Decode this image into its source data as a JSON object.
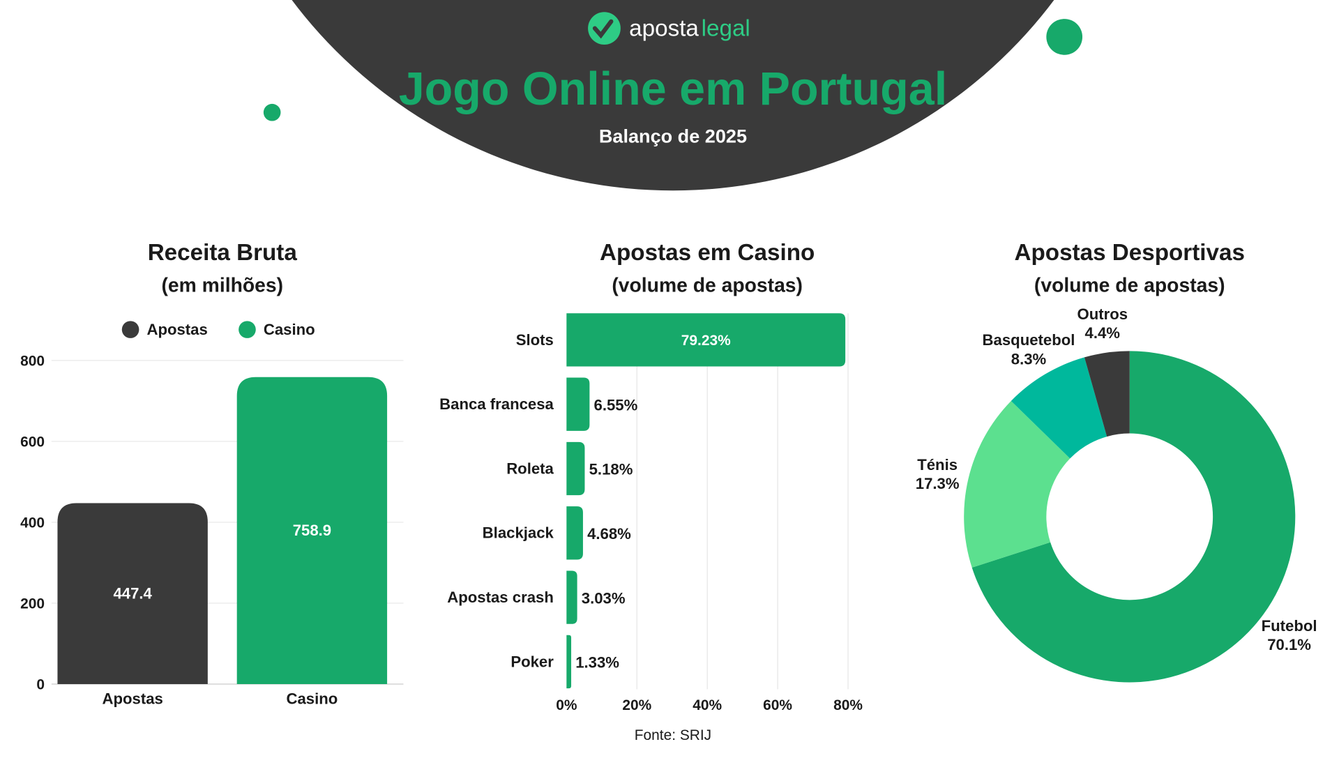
{
  "header": {
    "logo": {
      "part1": "aposta",
      "part2": "legal"
    },
    "title": "Jogo Online em Portugal",
    "subtitle": "Balanço de 2025"
  },
  "colors": {
    "dark": "#3a3a3a",
    "green": "#17a96a",
    "light_green": "#5ce08f",
    "teal": "#00b89c",
    "grid": "#e6e6e6",
    "text": "#1a1a1a"
  },
  "source": "Fonte: SRIJ",
  "chart_data": [
    {
      "type": "bar",
      "title": "Receita Bruta",
      "subtitle": "(em milhões)",
      "categories": [
        "Apostas",
        "Casino"
      ],
      "values": [
        447.4,
        758.9
      ],
      "value_labels": [
        "447.4",
        "758.9"
      ],
      "legend": [
        "Apostas",
        "Casino"
      ],
      "legend_placement": "top",
      "series_colors": [
        "#3a3a3a",
        "#17a96a"
      ],
      "ylim": [
        0,
        800
      ],
      "yticks": [
        "0",
        "200",
        "400",
        "600",
        "800"
      ],
      "grid": true
    },
    {
      "type": "bar",
      "orientation": "horizontal",
      "title": "Apostas em Casino",
      "subtitle": "(volume de apostas)",
      "categories": [
        "Slots",
        "Banca francesa",
        "Roleta",
        "Blackjack",
        "Apostas crash",
        "Poker"
      ],
      "values": [
        79.23,
        6.55,
        5.18,
        4.68,
        3.03,
        1.33
      ],
      "value_labels": [
        "79.23%",
        "6.55%",
        "5.18%",
        "4.68%",
        "3.03%",
        "1.33%"
      ],
      "xlim": [
        0,
        80
      ],
      "xticks": [
        "0%",
        "20%",
        "40%",
        "60%",
        "80%"
      ],
      "grid": true,
      "color": "#17a96a"
    },
    {
      "type": "pie",
      "donut": true,
      "title": "Apostas Desportivas",
      "subtitle": "(volume de apostas)",
      "labels": [
        "Futebol",
        "Ténis",
        "Basquetebol",
        "Outros"
      ],
      "values": [
        70.1,
        17.3,
        8.3,
        4.4
      ],
      "value_labels": [
        "70.1%",
        "17.3%",
        "8.3%",
        "4.4%"
      ],
      "colors": [
        "#17a96a",
        "#5ce08f",
        "#00b89c",
        "#3a3a3a"
      ]
    }
  ]
}
